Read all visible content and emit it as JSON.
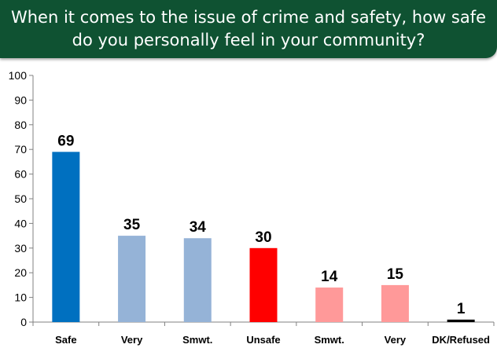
{
  "title_line1": "When it comes to the issue of crime and safety, how safe",
  "title_line2": "do you personally feel in your community?",
  "colors": {
    "banner": "#0f5232",
    "safe_dark": "#0070c0",
    "safe_light": "#95b3d7",
    "unsafe_dark": "#ff0000",
    "unsafe_light": "#ff9999",
    "refused": "#000000"
  },
  "chart_data": {
    "type": "bar",
    "categories": [
      "Safe",
      "Very",
      "Smwt.",
      "Unsafe",
      "Smwt.",
      "Very",
      "DK/Refused"
    ],
    "values": [
      69,
      35,
      34,
      30,
      14,
      15,
      1
    ],
    "bar_colors": [
      "#0070c0",
      "#95b3d7",
      "#95b3d7",
      "#ff0000",
      "#ff9999",
      "#ff9999",
      "#000000"
    ],
    "data_labels": [
      "69",
      "35",
      "34",
      "30",
      "14",
      "15",
      "1"
    ],
    "ylim": [
      0,
      100
    ],
    "yticks": [
      0,
      10,
      20,
      30,
      40,
      50,
      60,
      70,
      80,
      90,
      100
    ],
    "grid": false,
    "title": "",
    "xlabel": "",
    "ylabel": ""
  }
}
